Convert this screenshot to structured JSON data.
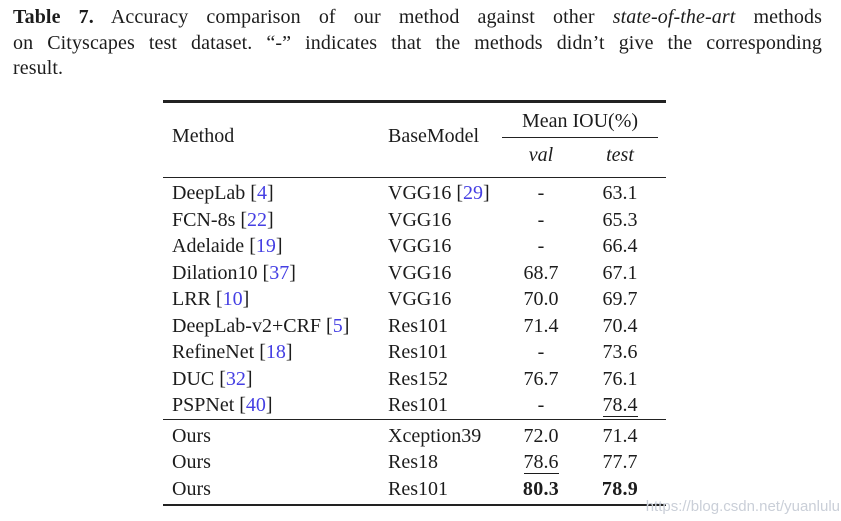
{
  "caption": {
    "lines": [
      {
        "justify": true,
        "segments": [
          {
            "text": "Table 7.",
            "style": "bold"
          },
          {
            "text": " Accuracy comparison of our method against other ",
            "style": "normal"
          },
          {
            "text": "state-of-the-art",
            "style": "italic"
          },
          {
            "text": " methods",
            "style": "normal"
          }
        ]
      },
      {
        "justify": true,
        "segments": [
          {
            "text": "on Cityscapes test dataset. “-” indicates that the methods didn’t give the corresponding",
            "style": "normal"
          }
        ]
      },
      {
        "justify": false,
        "segments": [
          {
            "text": "result.",
            "style": "normal"
          }
        ]
      }
    ]
  },
  "table": {
    "headers": {
      "method": "Method",
      "basemodel": "BaseModel",
      "mean_iou": "Mean IOU(%)",
      "val": "val",
      "test": "test"
    },
    "groups": [
      {
        "rows": [
          {
            "method": "DeepLab",
            "method_cite": "4",
            "basemodel": "VGG16",
            "basemodel_cite": "29",
            "val": "-",
            "test": "63.1"
          },
          {
            "method": "FCN-8s",
            "method_cite": "22",
            "basemodel": "VGG16",
            "val": "-",
            "test": "65.3"
          },
          {
            "method": "Adelaide",
            "method_cite": "19",
            "basemodel": "VGG16",
            "val": "-",
            "test": "66.4"
          },
          {
            "method": "Dilation10",
            "method_cite": "37",
            "basemodel": "VGG16",
            "val": "68.7",
            "test": "67.1"
          },
          {
            "method": "LRR",
            "method_cite": "10",
            "basemodel": "VGG16",
            "val": "70.0",
            "test": "69.7"
          },
          {
            "method": "DeepLab-v2+CRF",
            "method_cite": "5",
            "basemodel": "Res101",
            "val": "71.4",
            "test": "70.4"
          },
          {
            "method": "RefineNet",
            "method_cite": "18",
            "basemodel": "Res101",
            "val": "-",
            "test": "73.6"
          },
          {
            "method": "DUC",
            "method_cite": "32",
            "basemodel": "Res152",
            "val": "76.7",
            "test": "76.1"
          },
          {
            "method": "PSPNet",
            "method_cite": "40",
            "basemodel": "Res101",
            "val": "-",
            "test": "78.4",
            "test_style": "underline"
          }
        ]
      },
      {
        "rows": [
          {
            "method": "Ours",
            "basemodel": "Xception39",
            "val": "72.0",
            "test": "71.4"
          },
          {
            "method": "Ours",
            "basemodel": "Res18",
            "val": "78.6",
            "val_style": "underline",
            "test": "77.7"
          },
          {
            "method": "Ours",
            "basemodel": "Res101",
            "val": "80.3",
            "val_style": "bold",
            "test": "78.9",
            "test_style": "bold"
          }
        ]
      }
    ]
  },
  "watermark": {
    "text": "https://blog.csdn.net/yuanlulu"
  },
  "colors": {
    "text": "#1c1c1c",
    "citation": "#453fe3",
    "rule": "#222222",
    "watermark": "#cacfd8"
  }
}
